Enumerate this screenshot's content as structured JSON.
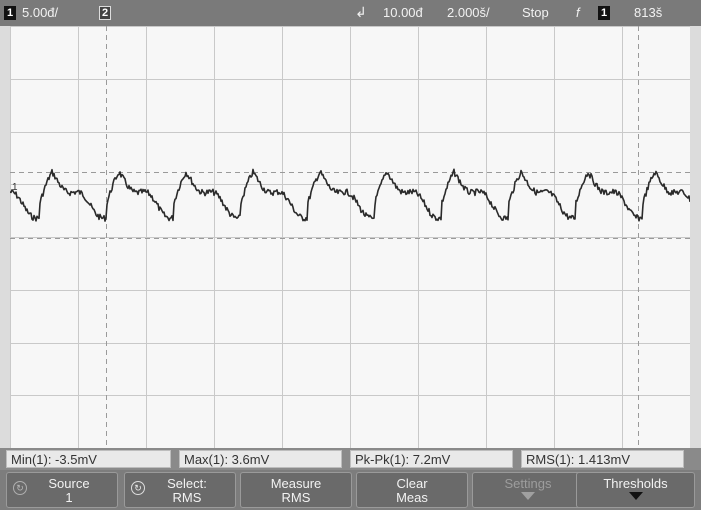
{
  "topbar": {
    "channel_number": "1",
    "volts_per_div": "5.00đ/",
    "channel2_marker": "2",
    "time_offset": "10.00đ",
    "time_per_div": "2.000š/",
    "run_state": "Stop",
    "trigger_symbol": "f",
    "trigger_channel": "1",
    "trigger_level": "813š"
  },
  "screen": {
    "ground_marker": "1",
    "trace_color": "#2b2b2b"
  },
  "measurements": [
    {
      "label": "Min(1): -3.5mV"
    },
    {
      "label": "Max(1): 3.6mV"
    },
    {
      "label": "Pk-Pk(1): 7.2mV"
    },
    {
      "label": "RMS(1): 1.413mV"
    }
  ],
  "softkeys": {
    "source": {
      "line1": "Source",
      "line2": "1"
    },
    "select": {
      "line1": "Select:",
      "line2": "RMS"
    },
    "measure": {
      "line1": "Measure",
      "line2": "RMS"
    },
    "clear": {
      "line1": "Clear",
      "line2": "Meas"
    },
    "settings": {
      "line1": "Settings"
    },
    "thresholds": {
      "line1": "Thresholds"
    }
  }
}
